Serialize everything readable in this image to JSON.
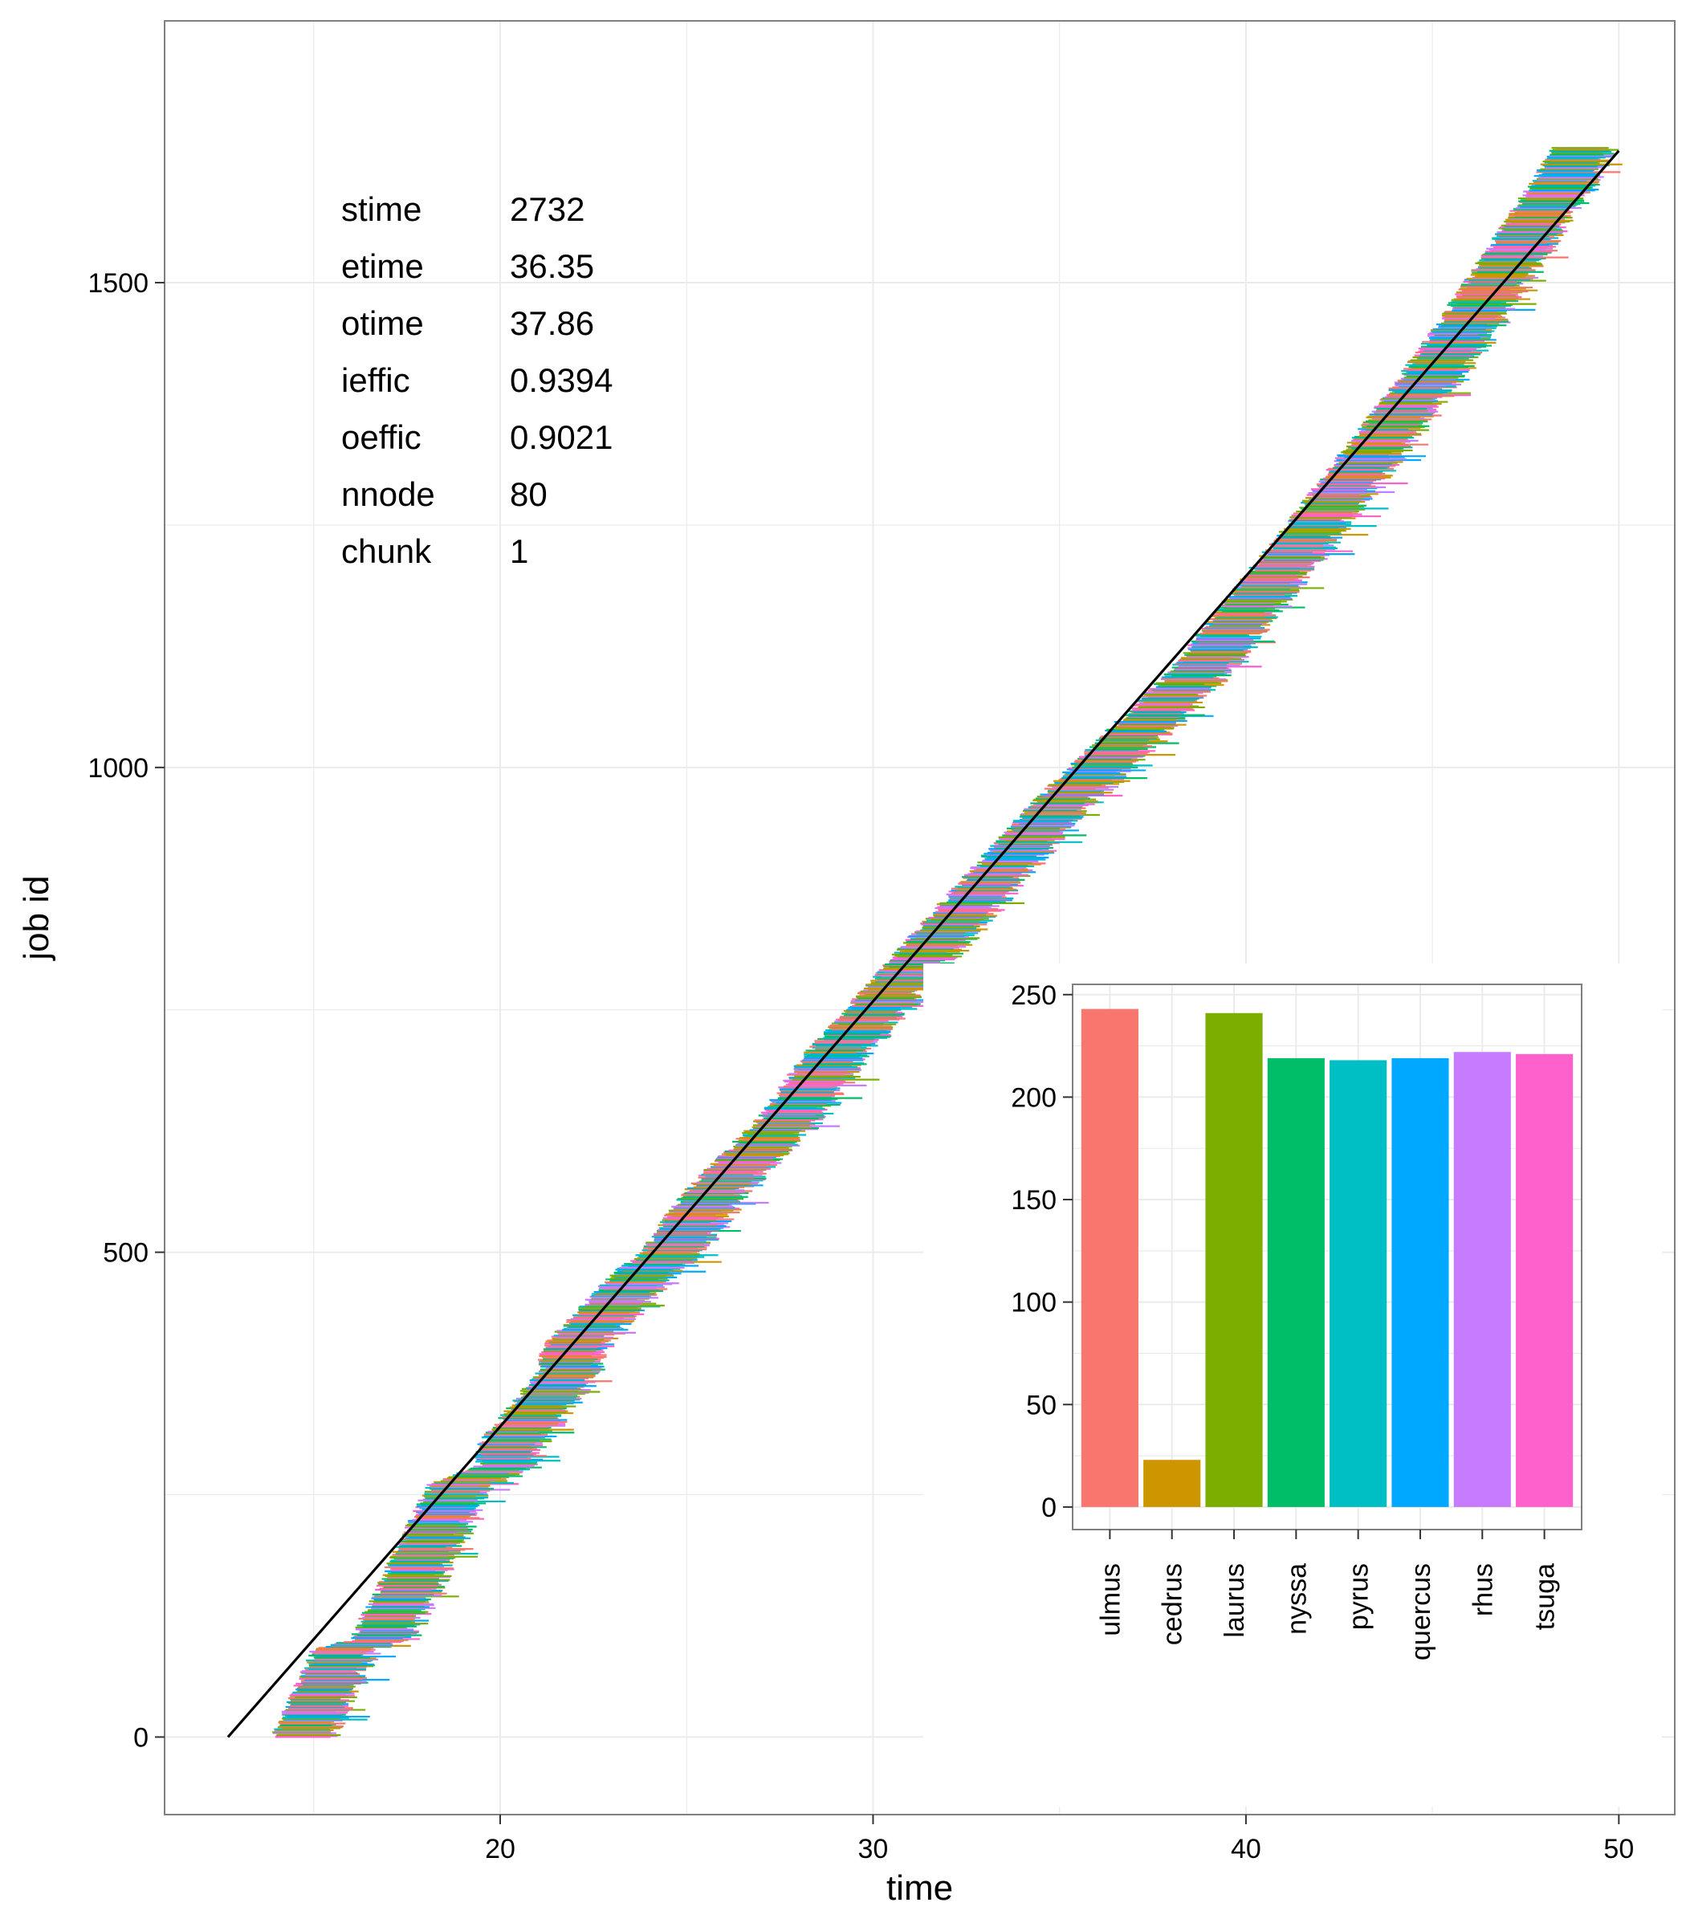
{
  "chart_data": [
    {
      "type": "line",
      "xlabel": "time",
      "ylabel": "job id",
      "xlim": [
        11,
        51.5
      ],
      "ylim": [
        -80,
        1770
      ],
      "x_ticks": [
        20,
        30,
        40,
        50
      ],
      "y_ticks": [
        0,
        500,
        1000,
        1500
      ],
      "grid": true,
      "background": "#ffffff",
      "grid_color": "#ebebeb",
      "fit_line": {
        "x": [
          12.7,
          50.0
        ],
        "y": [
          0,
          1636
        ],
        "color": "#000000"
      },
      "job_segments": {
        "description_of_marks": "one horizontal colored segment per job id from its start time to its end time; colored by host",
        "n_jobs": 1640,
        "start_time_range": [
          13.8,
          48.2
        ],
        "end_time_range": [
          15.4,
          49.5
        ]
      },
      "stats_table": {
        "rows": [
          {
            "label": "stime",
            "value": "2732"
          },
          {
            "label": "etime",
            "value": "36.35"
          },
          {
            "label": "otime",
            "value": "37.86"
          },
          {
            "label": "ieffic",
            "value": "0.9394"
          },
          {
            "label": "oeffic",
            "value": "0.9021"
          },
          {
            "label": "nnode",
            "value": "80"
          },
          {
            "label": "chunk",
            "value": "1"
          }
        ]
      }
    },
    {
      "type": "bar",
      "categories": [
        "ulmus",
        "cedrus",
        "laurus",
        "nyssa",
        "pyrus",
        "quercus",
        "rhus",
        "tsuga"
      ],
      "values": [
        243,
        23,
        241,
        219,
        218,
        219,
        222,
        221
      ],
      "colors": [
        "#F8766D",
        "#CD9600",
        "#7CAE00",
        "#00BE67",
        "#00BFC4",
        "#00A9FF",
        "#C77CFF",
        "#FF61CC"
      ],
      "ylim": [
        -11,
        255
      ],
      "y_ticks": [
        0,
        50,
        100,
        150,
        200,
        250
      ],
      "grid": true
    }
  ]
}
